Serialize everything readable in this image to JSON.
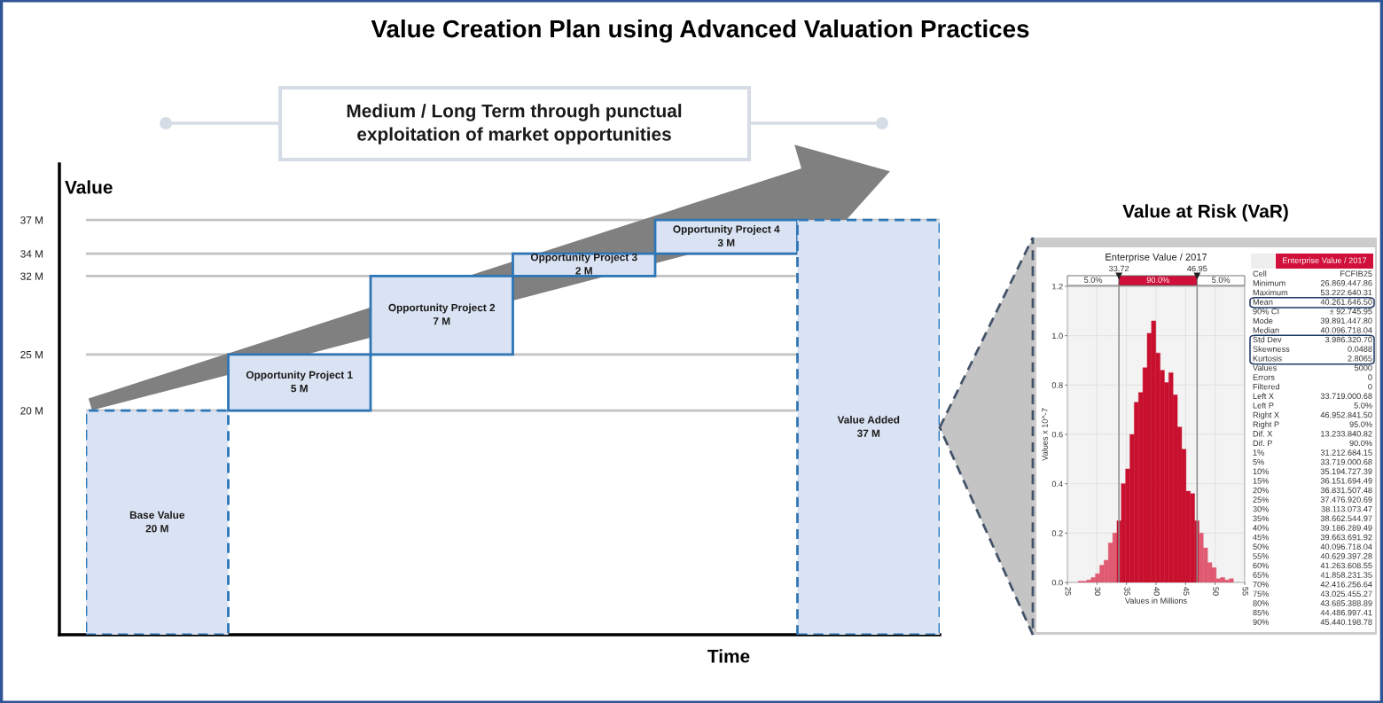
{
  "chart_data": [
    {
      "type": "bar",
      "title": "Value Creation Plan using Advanced Valuation Practices",
      "xlabel": "Time",
      "ylabel": "Value",
      "categories": [
        null,
        null,
        null,
        null,
        null,
        null
      ],
      "series": [
        {
          "name": "Base Value",
          "color": "#dae3f3",
          "line_style": "dashed",
          "values": [
            20,
            null,
            null,
            null,
            null,
            null
          ],
          "value_labels": [
            "20 M",
            null,
            null,
            null,
            null,
            null
          ]
        },
        {
          "name": "Opportunity Project 1",
          "color": "#dae3f3",
          "line_style": "solid",
          "values": [
            null,
            5,
            null,
            null,
            null,
            null
          ],
          "base": [
            null,
            20,
            null,
            null,
            null,
            null
          ],
          "value_labels": [
            null,
            "5 M",
            null,
            null,
            null,
            null
          ]
        },
        {
          "name": "Opportunity Project 2",
          "color": "#dae3f3",
          "line_style": "solid",
          "values": [
            null,
            null,
            7,
            null,
            null,
            null
          ],
          "base": [
            null,
            null,
            25,
            null,
            null,
            null
          ],
          "value_labels": [
            null,
            null,
            "7 M",
            null,
            null,
            null
          ]
        },
        {
          "name": "Opportunity Project 3",
          "color": "#dae3f3",
          "line_style": "solid",
          "values": [
            null,
            null,
            null,
            2,
            null,
            null
          ],
          "base": [
            null,
            null,
            null,
            32,
            null,
            null
          ],
          "value_labels": [
            null,
            null,
            null,
            "2 M",
            null,
            null
          ]
        },
        {
          "name": "Opportunity Project 4",
          "color": "#dae3f3",
          "line_style": "solid",
          "values": [
            null,
            null,
            null,
            null,
            3,
            null
          ],
          "base": [
            null,
            null,
            null,
            null,
            34,
            null
          ],
          "value_labels": [
            null,
            null,
            null,
            null,
            "3 M",
            null
          ]
        },
        {
          "name": "Value Added",
          "color": "#dae3f3",
          "line_style": "dashed",
          "values": [
            null,
            null,
            null,
            null,
            null,
            37
          ],
          "value_labels": [
            null,
            null,
            null,
            null,
            null,
            "37 M"
          ]
        }
      ],
      "ylim": [
        0,
        42
      ],
      "yticks": [
        {
          "value": 20,
          "label": "20 M"
        },
        {
          "value": 25,
          "label": "25 M"
        },
        {
          "value": 32,
          "label": "32 M"
        },
        {
          "value": 34,
          "label": "34 M"
        },
        {
          "value": 37,
          "label": "37 M"
        }
      ],
      "grid": "y",
      "tick_labels": "y",
      "annotations": [
        "Medium / Long Term through punctual\nexploitation of market opportunities"
      ]
    },
    {
      "type": "histogram",
      "title": "Value at Risk (VaR)",
      "subtitle": "Enterprise Value / 2017",
      "xlabel": "Values in Millions",
      "ylabel": "Values x 10^-7",
      "bins": [
        26.82,
        27.55,
        28.28,
        29.01,
        29.74,
        30.47,
        31.2,
        31.93,
        32.66,
        33.39,
        34.12,
        34.85,
        35.58,
        36.31,
        37.04,
        37.77,
        38.5,
        39.23,
        39.96,
        40.69,
        41.42,
        42.15,
        42.88,
        43.61,
        44.34,
        45.07,
        45.8,
        46.53,
        47.26,
        47.99,
        48.72,
        49.45,
        50.18,
        50.91,
        51.64,
        52.37,
        53.1
      ],
      "values": [
        0.005,
        0.005,
        0.01,
        0.02,
        0.035,
        0.07,
        0.09,
        0.16,
        0.2,
        0.25,
        0.4,
        0.46,
        0.6,
        0.73,
        0.77,
        0.87,
        1.01,
        1.06,
        0.93,
        0.86,
        0.81,
        0.85,
        0.76,
        0.63,
        0.54,
        0.37,
        0.36,
        0.25,
        0.2,
        0.14,
        0.08,
        0.06,
        0.015,
        0.02,
        0.01,
        0.015
      ],
      "colors": [
        "#e05a72",
        "#e05a72",
        "#e05a72",
        "#e05a72",
        "#e05a72",
        "#e05a72",
        "#e05a72",
        "#e05a72",
        "#e05a72",
        "#c8102e",
        "#c8102e",
        "#c8102e",
        "#c8102e",
        "#c8102e",
        "#c8102e",
        "#c8102e",
        "#c8102e",
        "#c8102e",
        "#c8102e",
        "#c8102e",
        "#c8102e",
        "#c8102e",
        "#c8102e",
        "#c8102e",
        "#c8102e",
        "#c8102e",
        "#c8102e",
        "#c8102e",
        "#e05a72",
        "#e05a72",
        "#e05a72",
        "#e05a72",
        "#e05a72",
        "#e05a72",
        "#e05a72",
        "#e05a72"
      ],
      "xlim": [
        25,
        55
      ],
      "xticks": [
        25,
        30,
        35,
        40,
        45,
        50,
        55
      ],
      "ylim": [
        0,
        1.2
      ],
      "yticks": [
        {
          "value": 0,
          "label": "0.0"
        },
        0.2,
        0.4,
        0.6,
        0.8,
        {
          "value": 1,
          "label": "1.0"
        },
        1.2
      ],
      "grid": true,
      "ref_lines": [
        {
          "axis": "x",
          "value": 33.72,
          "label": "33.72"
        },
        {
          "axis": "x",
          "value": 46.95,
          "label": "46.95"
        }
      ],
      "annotations": [
        "5.0%",
        "90.0%",
        "5.0%",
        "Enterprise Value / 2017",
        "Cell",
        "FCFIB25",
        "Minimum",
        "26.869.447.86",
        "Maximum",
        "53.222.640.31",
        "Mean",
        "40.261.646.50",
        "90% CI",
        "± 92.745.95",
        "Mode",
        "39.891.447.80",
        "Median",
        "40.096.718.04",
        "Std Dev",
        "3.986.320.70",
        "Skewness",
        "0.0488",
        "Kurtosis",
        "2.8065",
        "Values",
        "5000",
        "Errors",
        "0",
        "Filtered",
        "0",
        "Left X",
        "33.719.000.68",
        "Left P",
        "5.0%",
        "Right X",
        "46.952.841.50",
        "Right P",
        "95.0%",
        "Dif. X",
        "13.233.840.82",
        "Dif. P",
        "90.0%",
        "1%",
        "31.212.684.15",
        "5%",
        "33.719.000.68",
        "10%",
        "35.194.727.39",
        "15%",
        "36.151.694.49",
        "20%",
        "36.831.507.48",
        "25%",
        "37.476.920.69",
        "30%",
        "38.113.073.47",
        "35%",
        "38.662.544.97",
        "40%",
        "39.186.289.49",
        "45%",
        "39.663.691.92",
        "50%",
        "40.096.718.04",
        "55%",
        "40.629.397.28",
        "60%",
        "41.263.608.55",
        "65%",
        "41.858.231.35",
        "70%",
        "42.416.256.64",
        "75%",
        "43.025.455.27",
        "80%",
        "43.685.388.89",
        "85%",
        "44.486.997.41",
        "90%",
        "45.440.198.78"
      ]
    }
  ]
}
